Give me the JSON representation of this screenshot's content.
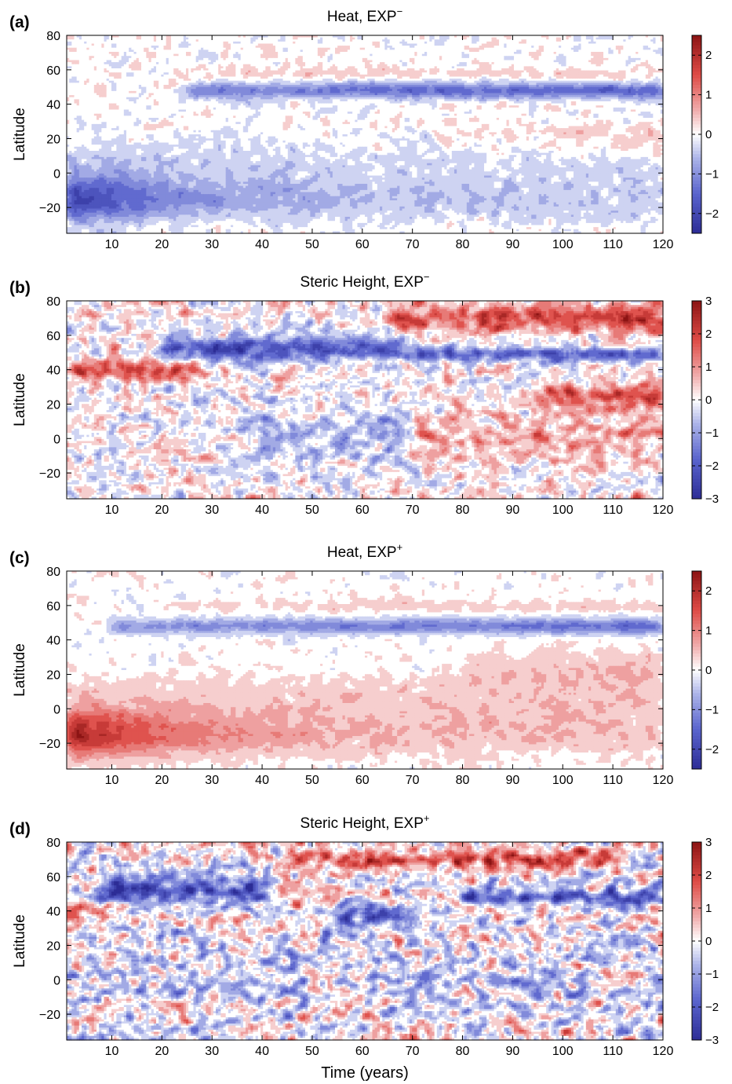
{
  "chart_data": [
    {
      "type": "heatmap",
      "panel_label": "(a)",
      "title": "Heat, EXP",
      "title_sup": "−",
      "ylabel": "Latitude",
      "xlabel": "",
      "xlim": [
        1,
        120
      ],
      "ylim": [
        -35,
        80
      ],
      "xticks": [
        10,
        20,
        30,
        40,
        50,
        60,
        70,
        80,
        90,
        100,
        110,
        120
      ],
      "yticks": [
        -20,
        0,
        20,
        40,
        60,
        80
      ],
      "colorbar": {
        "range": [
          -2.5,
          2.5
        ],
        "ticks": [
          2,
          1,
          0,
          -1,
          -2
        ],
        "tick_labels": [
          "2",
          "1",
          "0",
          "−1",
          "−2"
        ]
      },
      "features": [
        {
          "t_start": 1,
          "t_end": 120,
          "lat_center": -15,
          "lat_width": 13,
          "amp_start": -2.3,
          "amp_end": -0.45,
          "decay": 20
        },
        {
          "t_start": 1,
          "t_end": 120,
          "lat_center": 7,
          "lat_width": 13,
          "amp_start": -0.5,
          "amp_end": -0.2,
          "decay": 40
        },
        {
          "t_start": 25,
          "t_end": 120,
          "lat_center": 48,
          "lat_width": 4.5,
          "amp_start": -1.1,
          "amp_end": -1.6,
          "decay": 0
        },
        {
          "t_start": 25,
          "t_end": 120,
          "lat_center": 58,
          "lat_width": 4,
          "amp_start": 0.2,
          "amp_end": 0.35,
          "decay": 0
        },
        {
          "t_start": 75,
          "t_end": 120,
          "lat_center": 20,
          "lat_width": 9,
          "amp_start": 0.2,
          "amp_end": 0.4,
          "decay": 0
        }
      ],
      "noise": 0.22
    },
    {
      "type": "heatmap",
      "panel_label": "(b)",
      "title": "Steric Height, EXP",
      "title_sup": "−",
      "ylabel": "Latitude",
      "xlabel": "",
      "xlim": [
        1,
        120
      ],
      "ylim": [
        -35,
        80
      ],
      "xticks": [
        10,
        20,
        30,
        40,
        50,
        60,
        70,
        80,
        90,
        100,
        110,
        120
      ],
      "yticks": [
        -20,
        0,
        20,
        40,
        60,
        80
      ],
      "colorbar": {
        "range": [
          -3,
          3
        ],
        "ticks": [
          3,
          2,
          1,
          0,
          -1,
          -2,
          -3
        ],
        "tick_labels": [
          "3",
          "2",
          "1",
          "0",
          "−1",
          "−2",
          "−3"
        ]
      },
      "features": [
        {
          "t_start": 20,
          "t_end": 70,
          "lat_center": 52,
          "lat_width": 7,
          "amp_start": -2.4,
          "amp_end": -1.8,
          "decay": 0
        },
        {
          "t_start": 70,
          "t_end": 120,
          "lat_center": 49,
          "lat_width": 4,
          "amp_start": -1.8,
          "amp_end": -2.0,
          "decay": 0
        },
        {
          "t_start": 1,
          "t_end": 28,
          "lat_center": 40,
          "lat_width": 6,
          "amp_start": 1.5,
          "amp_end": 2.0,
          "decay": 0
        },
        {
          "t_start": 65,
          "t_end": 120,
          "lat_center": 70,
          "lat_width": 8,
          "amp_start": 1.6,
          "amp_end": 2.4,
          "decay": 0
        },
        {
          "t_start": 95,
          "t_end": 120,
          "lat_center": 25,
          "lat_width": 7,
          "amp_start": 1.2,
          "amp_end": 1.8,
          "decay": 0
        },
        {
          "t_start": 35,
          "t_end": 70,
          "lat_center": 0,
          "lat_width": 18,
          "amp_start": -0.7,
          "amp_end": -0.5,
          "decay": 0
        },
        {
          "t_start": 70,
          "t_end": 120,
          "lat_center": 0,
          "lat_width": 18,
          "amp_start": 0.6,
          "amp_end": 0.8,
          "decay": 0
        }
      ],
      "noise": 0.75
    },
    {
      "type": "heatmap",
      "panel_label": "(c)",
      "title": "Heat, EXP",
      "title_sup": "+",
      "ylabel": "Latitude",
      "xlabel": "",
      "xlim": [
        1,
        120
      ],
      "ylim": [
        -35,
        80
      ],
      "xticks": [
        10,
        20,
        30,
        40,
        50,
        60,
        70,
        80,
        90,
        100,
        110,
        120
      ],
      "yticks": [
        -20,
        0,
        20,
        40,
        60,
        80
      ],
      "colorbar": {
        "range": [
          -2.5,
          2.5
        ],
        "ticks": [
          2,
          1,
          0,
          -1,
          -2
        ],
        "tick_labels": [
          "2",
          "1",
          "0",
          "−1",
          "−2"
        ]
      },
      "features": [
        {
          "t_start": 1,
          "t_end": 120,
          "lat_center": -15,
          "lat_width": 13,
          "amp_start": 2.4,
          "amp_end": 0.45,
          "decay": 20
        },
        {
          "t_start": 1,
          "t_end": 120,
          "lat_center": 5,
          "lat_width": 14,
          "amp_start": 0.4,
          "amp_end": 0.35,
          "decay": 40
        },
        {
          "t_start": 10,
          "t_end": 120,
          "lat_center": 48,
          "lat_width": 4.5,
          "amp_start": -0.9,
          "amp_end": -1.4,
          "decay": 0
        },
        {
          "t_start": 20,
          "t_end": 120,
          "lat_center": 60,
          "lat_width": 4,
          "amp_start": 0.25,
          "amp_end": 0.35,
          "decay": 0
        },
        {
          "t_start": 80,
          "t_end": 120,
          "lat_center": 22,
          "lat_width": 12,
          "amp_start": 0.35,
          "amp_end": 0.45,
          "decay": 0
        }
      ],
      "noise": 0.2
    },
    {
      "type": "heatmap",
      "panel_label": "(d)",
      "title": "Steric Height, EXP",
      "title_sup": "+",
      "ylabel": "Latitude",
      "xlabel": "Time (years)",
      "xlim": [
        1,
        120
      ],
      "ylim": [
        -35,
        80
      ],
      "xticks": [
        10,
        20,
        30,
        40,
        50,
        60,
        70,
        80,
        90,
        100,
        110,
        120
      ],
      "yticks": [
        -20,
        0,
        20,
        40,
        60,
        80
      ],
      "colorbar": {
        "range": [
          -3,
          3
        ],
        "ticks": [
          3,
          2,
          1,
          0,
          -1,
          -2,
          -3
        ],
        "tick_labels": [
          "3",
          "2",
          "1",
          "0",
          "−1",
          "−2",
          "−3"
        ]
      },
      "features": [
        {
          "t_start": 8,
          "t_end": 40,
          "lat_center": 52,
          "lat_width": 9,
          "amp_start": -2.4,
          "amp_end": -2.0,
          "decay": 0
        },
        {
          "t_start": 55,
          "t_end": 70,
          "lat_center": 38,
          "lat_width": 8,
          "amp_start": -1.8,
          "amp_end": -1.6,
          "decay": 0
        },
        {
          "t_start": 80,
          "t_end": 120,
          "lat_center": 48,
          "lat_width": 5,
          "amp_start": -1.6,
          "amp_end": -2.0,
          "decay": 0
        },
        {
          "t_start": 45,
          "t_end": 110,
          "lat_center": 70,
          "lat_width": 6,
          "amp_start": 1.4,
          "amp_end": 1.6,
          "decay": 0
        },
        {
          "t_start": 1,
          "t_end": 12,
          "lat_center": 40,
          "lat_width": 5,
          "amp_start": 1.6,
          "amp_end": 1.4,
          "decay": 0
        },
        {
          "t_start": 1,
          "t_end": 120,
          "lat_center": 0,
          "lat_width": 20,
          "amp_start": -0.45,
          "amp_end": -0.35,
          "decay": 0
        }
      ],
      "noise": 0.75
    }
  ]
}
